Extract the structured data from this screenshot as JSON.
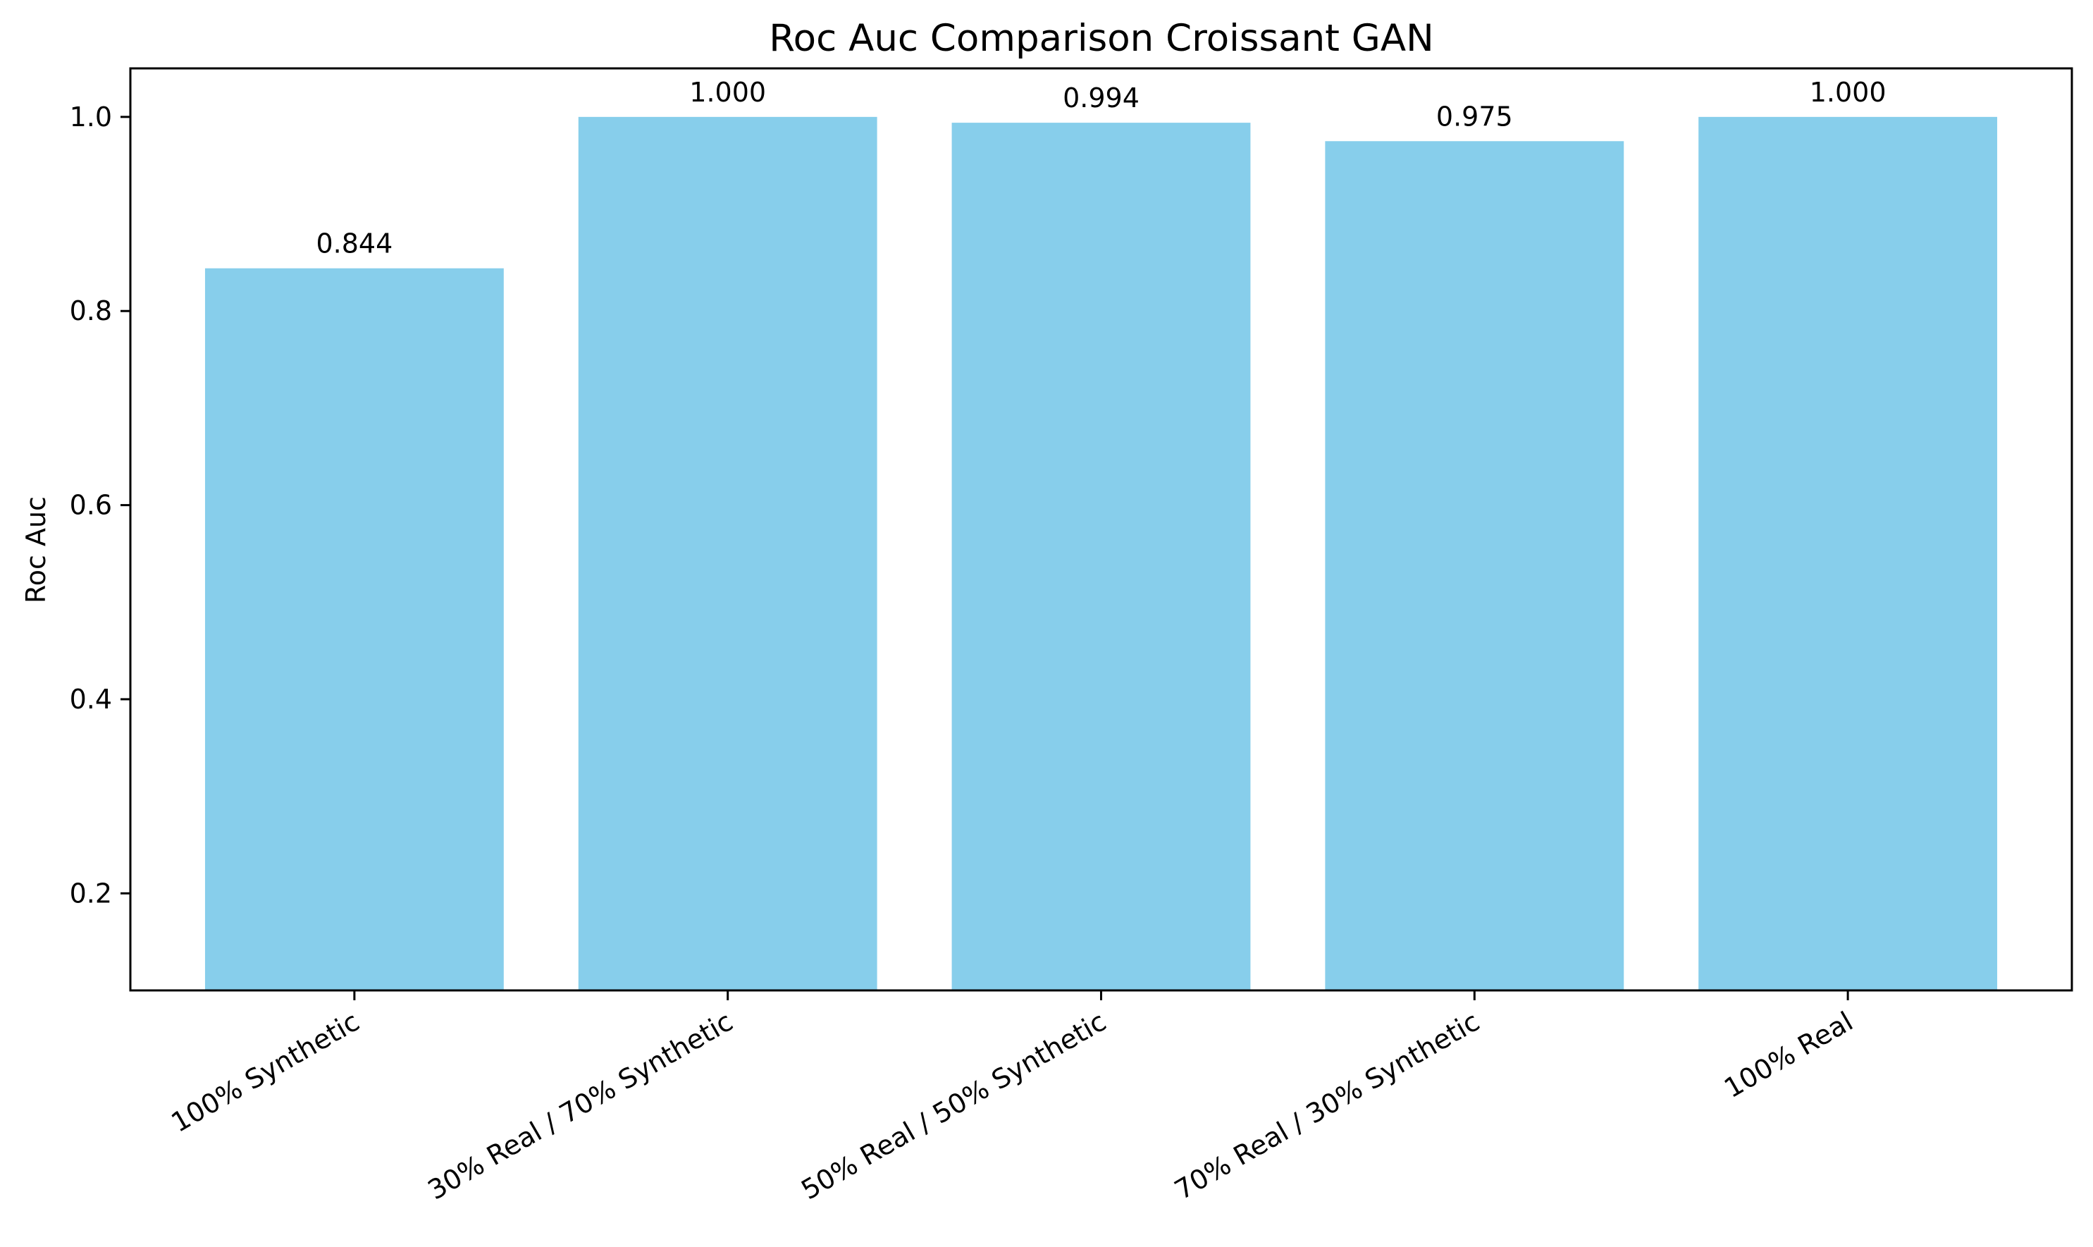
{
  "chart_data": {
    "type": "bar",
    "title": "Roc Auc Comparison Croissant GAN",
    "xlabel": "",
    "ylabel": "Roc Auc",
    "categories": [
      "100% Synthetic",
      "30% Real / 70% Synthetic",
      "50% Real / 50% Synthetic",
      "70% Real / 30% Synthetic",
      "100% Real"
    ],
    "values": [
      0.844,
      1.0,
      0.994,
      0.975,
      1.0
    ],
    "value_labels": [
      "0.844",
      "1.000",
      "0.994",
      "0.975",
      "1.000"
    ],
    "ylim": [
      0.1,
      1.05
    ],
    "yticks": [
      0.2,
      0.4,
      0.6,
      0.8,
      1.0
    ],
    "ytick_labels": [
      "0.2",
      "0.4",
      "0.6",
      "0.8",
      "1.0"
    ],
    "bar_color": "#87CEEB",
    "grid": false,
    "legend": "none"
  }
}
